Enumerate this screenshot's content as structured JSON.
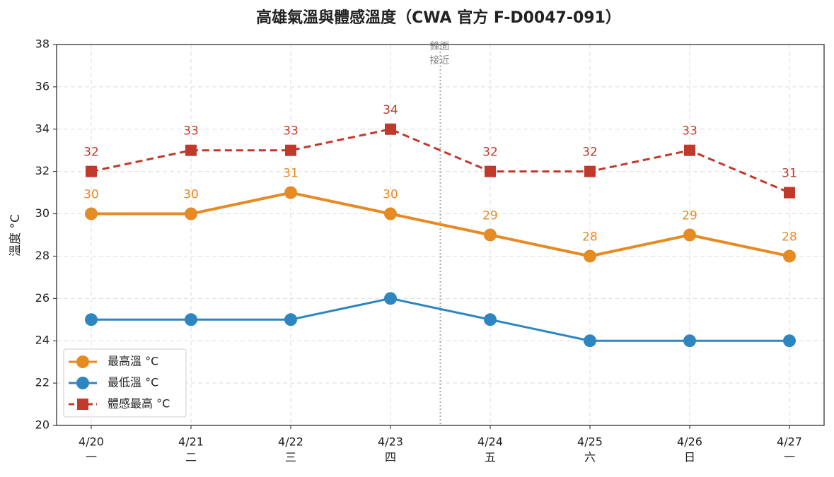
{
  "chart_data": {
    "type": "line",
    "title": "高雄氣溫與體感溫度（CWA 官方 F-D0047-091）",
    "y_label": "溫度 °C",
    "categories": [
      "4/20",
      "4/21",
      "4/22",
      "4/23",
      "4/24",
      "4/25",
      "4/26",
      "4/27"
    ],
    "weekdays": [
      "一",
      "二",
      "三",
      "四",
      "五",
      "六",
      "日",
      "一"
    ],
    "series": [
      {
        "name": "最高溫 °C",
        "color": "#e68a23",
        "marker": "circle",
        "dashed": false,
        "data_labels": true,
        "values": [
          30,
          30,
          31,
          30,
          29,
          28,
          29,
          28
        ]
      },
      {
        "name": "最低溫 °C",
        "color": "#2e86c1",
        "marker": "circle",
        "dashed": false,
        "data_labels": false,
        "values": [
          25,
          25,
          25,
          26,
          25,
          24,
          24,
          24
        ]
      },
      {
        "name": "體感最高 °C",
        "color": "#c0392b",
        "marker": "square",
        "dashed": true,
        "data_labels": true,
        "values": [
          32,
          33,
          33,
          34,
          32,
          32,
          33,
          31
        ]
      }
    ],
    "annotation": [
      "鋒面",
      "接近"
    ],
    "ylim": [
      20,
      38
    ],
    "yticks": [
      20,
      22,
      24,
      26,
      28,
      30,
      32,
      34,
      36,
      38
    ],
    "grid": true,
    "legend": "lower left"
  }
}
